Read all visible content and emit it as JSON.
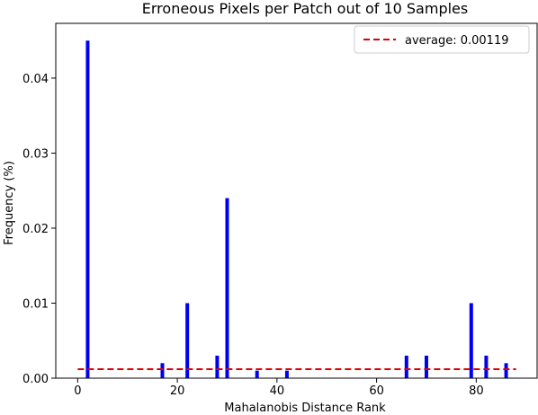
{
  "chart_data": {
    "type": "bar",
    "title": "Erroneous Pixels per Patch out of 10 Samples",
    "xlabel": "Mahalanobis Distance Rank",
    "ylabel": "Frequency (%)",
    "xlim": [
      -4.4,
      92.4
    ],
    "ylim": [
      0,
      0.0473
    ],
    "xticks": [
      {
        "value": 0,
        "label": "0"
      },
      {
        "value": 20,
        "label": "20"
      },
      {
        "value": 40,
        "label": "40"
      },
      {
        "value": 60,
        "label": "60"
      },
      {
        "value": 80,
        "label": "80"
      }
    ],
    "yticks": [
      {
        "value": 0,
        "label": "0.00"
      },
      {
        "value": 0.01,
        "label": "0.01"
      },
      {
        "value": 0.02,
        "label": "0.02"
      },
      {
        "value": 0.03,
        "label": "0.03"
      },
      {
        "value": 0.04,
        "label": "0.04"
      }
    ],
    "grid": false,
    "bar_color": "#0000ee",
    "bars": [
      {
        "x": 2,
        "value": 0.045
      },
      {
        "x": 17,
        "value": 0.002
      },
      {
        "x": 22,
        "value": 0.01
      },
      {
        "x": 28,
        "value": 0.003
      },
      {
        "x": 30,
        "value": 0.024
      },
      {
        "x": 36,
        "value": 0.001
      },
      {
        "x": 42,
        "value": 0.001
      },
      {
        "x": 66,
        "value": 0.003
      },
      {
        "x": 70,
        "value": 0.003
      },
      {
        "x": 79,
        "value": 0.01
      },
      {
        "x": 82,
        "value": 0.003
      },
      {
        "x": 86,
        "value": 0.002
      }
    ],
    "average_line": {
      "label": "average: 0.00119",
      "value": 0.00119,
      "x_range": [
        0,
        88
      ],
      "color": "#dd0000",
      "style": "dashed"
    },
    "legend_position": "top-right"
  }
}
